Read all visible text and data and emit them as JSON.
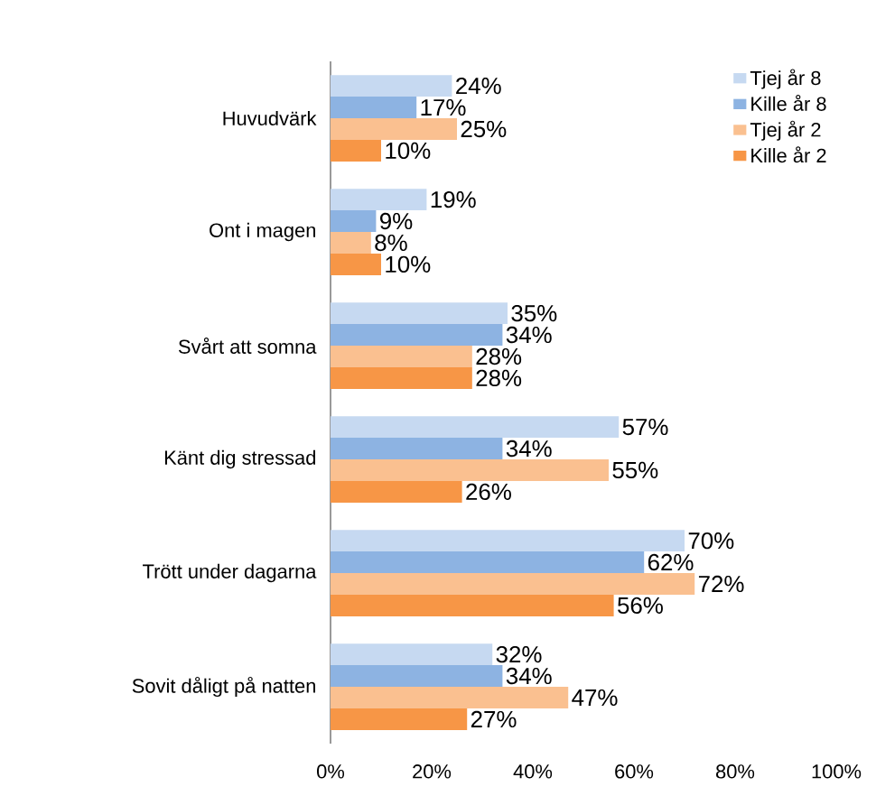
{
  "chart_data": {
    "type": "bar",
    "orientation": "horizontal",
    "categories": [
      "Huvudvärk",
      "Ont i magen",
      "Svårt att somna",
      "Känt dig stressad",
      "Trött under dagarna",
      "Sovit dåligt på natten"
    ],
    "series": [
      {
        "name": "Tjej år 8",
        "color": "#c6d9f1",
        "values": [
          24,
          19,
          35,
          57,
          70,
          32
        ],
        "value_labels": [
          "24%",
          "19%",
          "35%",
          "57%",
          "70%",
          "32%"
        ]
      },
      {
        "name": "Kille år 8",
        "color": "#8db3e2",
        "values": [
          17,
          9,
          34,
          34,
          62,
          34
        ],
        "value_labels": [
          "17%",
          "9%",
          "34%",
          "34%",
          "62%",
          "34%"
        ]
      },
      {
        "name": "Tjej år 2",
        "color": "#fac090",
        "values": [
          25,
          8,
          28,
          55,
          72,
          47
        ],
        "value_labels": [
          "25%",
          "8%",
          "28%",
          "55%",
          "72%",
          "47%"
        ]
      },
      {
        "name": "Kille år 2",
        "color": "#f79646",
        "values": [
          10,
          10,
          28,
          26,
          56,
          27
        ],
        "value_labels": [
          "10%",
          "10%",
          "28%",
          "26%",
          "56%",
          "27%"
        ]
      }
    ],
    "xlim": [
      0,
      100
    ],
    "xticks": [
      {
        "value": 0,
        "label": "0%"
      },
      {
        "value": 20,
        "label": "20%"
      },
      {
        "value": 40,
        "label": "40%"
      },
      {
        "value": 60,
        "label": "60%"
      },
      {
        "value": 80,
        "label": "80%"
      },
      {
        "value": 100,
        "label": "100%"
      }
    ],
    "legend": "top right",
    "grid": false
  }
}
